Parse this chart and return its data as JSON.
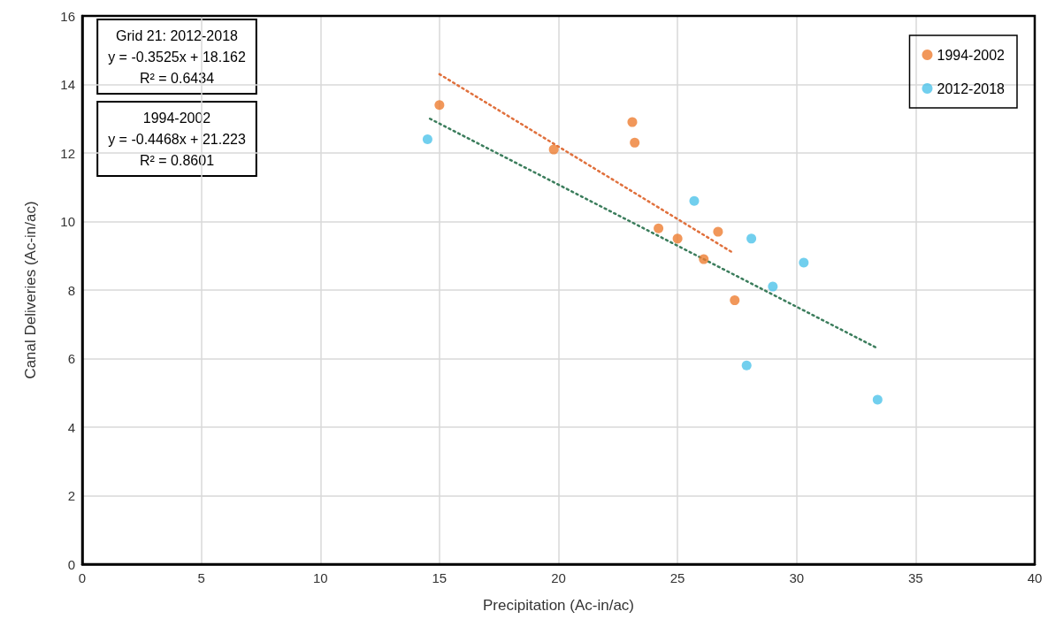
{
  "chart_data": {
    "type": "scatter",
    "xlabel": "Precipitation (Ac-in/ac)",
    "ylabel": "Canal Deliveries (Ac-in/ac)",
    "xlim": [
      0,
      40
    ],
    "xticks": [
      0,
      5,
      10,
      15,
      20,
      25,
      30,
      35,
      40
    ],
    "ylim": [
      0,
      16
    ],
    "yticks": [
      0,
      2,
      4,
      6,
      8,
      10,
      12,
      14,
      16
    ],
    "grid": true,
    "legend": "top right",
    "marker": "circle",
    "annotations": [
      "Grid 21: 2012-2018\ny = -0.3525x + 18.162\nR² = 0.6434",
      "1994-2002\ny = -0.4468x + 21.223\nR² = 0.8601"
    ],
    "series": [
      {
        "name": "1994-2002",
        "color": "#ed7d31",
        "x": [
          15.0,
          19.8,
          23.1,
          23.2,
          24.2,
          25.0,
          26.7,
          26.1,
          27.4
        ],
        "values": [
          13.4,
          12.1,
          12.9,
          12.3,
          9.8,
          9.5,
          9.7,
          8.9,
          7.7
        ]
      },
      {
        "name": "2012-2018",
        "color": "#4dc3ea",
        "x": [
          14.5,
          25.7,
          28.1,
          29.0,
          30.3,
          27.9,
          33.4
        ],
        "values": [
          12.4,
          10.6,
          9.5,
          8.1,
          8.8,
          5.8,
          4.8
        ]
      },
      {
        "type": "line",
        "color": "#e0703c",
        "line_style": "dotted",
        "marker": "none",
        "x": [
          15.0,
          27.3
        ],
        "values": [
          14.3,
          9.1
        ]
      },
      {
        "type": "line",
        "color": "#3b7d5c",
        "line_style": "dotted",
        "marker": "none",
        "x": [
          14.6,
          33.4
        ],
        "values": [
          13.0,
          6.3
        ]
      }
    ]
  }
}
